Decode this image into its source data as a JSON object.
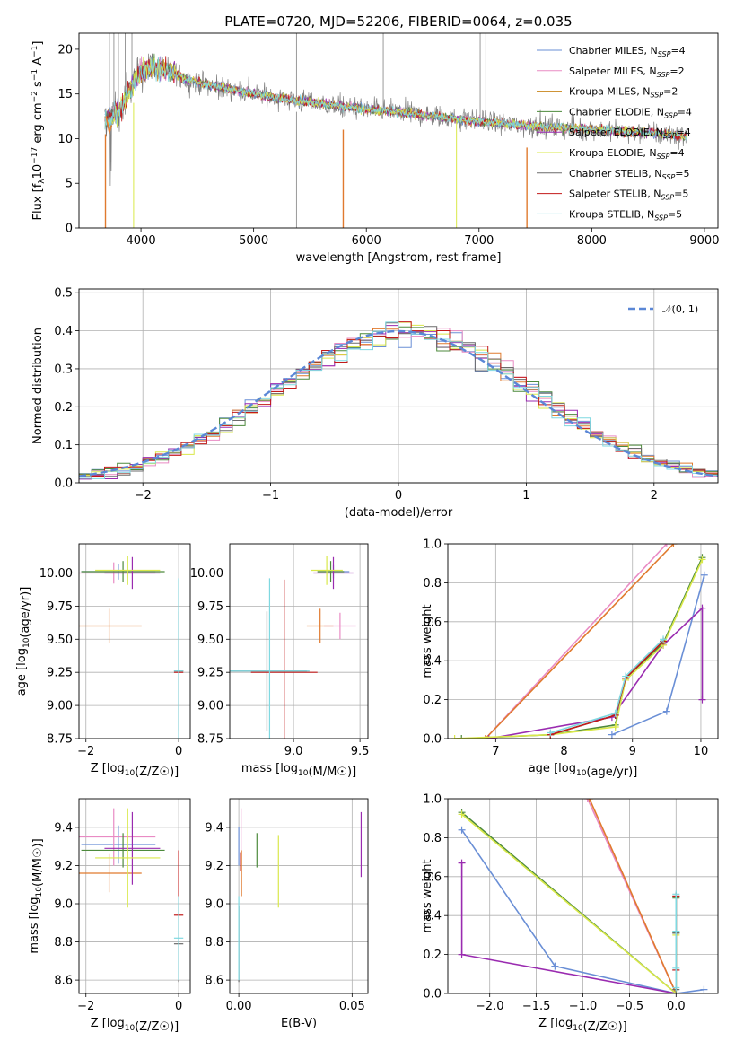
{
  "figure": {
    "title": "PLATE=0720, MJD=52206, FIBERID=0064, z=0.035"
  },
  "colors": {
    "Chabrier MILES": "#6a8fd6",
    "Salpeter MILES": "#e98bc4",
    "Kroupa MILES": "#c8841a",
    "Chabrier ELODIE": "#4d8a3c",
    "Salpeter ELODIE": "#9a2bb0",
    "Kroupa ELODIE": "#d9e84a",
    "Chabrier STELIB": "#6b6b6b",
    "Salpeter STELIB": "#c21a1a",
    "Kroupa STELIB": "#7fd8e0",
    "spectrum_orange": "#e07a2e",
    "normal_curve": "#5b87d6"
  },
  "chart_data": [
    {
      "id": "spectrum",
      "type": "line",
      "title": "PLATE=0720, MJD=52206, FIBERID=0064, z=0.035",
      "xlabel": "wavelength [Angstrom, rest frame]",
      "ylabel": "Flux [fλ10⁻¹⁷ erg cm⁻² s⁻¹ A⁻¹]",
      "xlim": [
        3450,
        9120
      ],
      "ylim": [
        0,
        21.8
      ],
      "xticks": [
        4000,
        5000,
        6000,
        7000,
        8000,
        9000
      ],
      "yticks": [
        0,
        5,
        10,
        15,
        20
      ],
      "grid": false,
      "legend_position": "top-right",
      "continuum": [
        [
          3680,
          12.0
        ],
        [
          3800,
          13.0
        ],
        [
          3950,
          16.5
        ],
        [
          4000,
          17.5
        ],
        [
          4100,
          18.0
        ],
        [
          4250,
          17.6
        ],
        [
          4400,
          16.6
        ],
        [
          4600,
          16.0
        ],
        [
          4800,
          15.5
        ],
        [
          5000,
          15.0
        ],
        [
          5300,
          14.4
        ],
        [
          5600,
          13.9
        ],
        [
          6000,
          13.3
        ],
        [
          6400,
          12.8
        ],
        [
          6800,
          12.2
        ],
        [
          7200,
          11.7
        ],
        [
          7600,
          11.3
        ],
        [
          8000,
          11.0
        ],
        [
          8400,
          10.7
        ],
        [
          8850,
          10.3
        ]
      ],
      "series": [
        {
          "name": "Chabrier MILES",
          "label": "Chabrier MILES, N",
          "sub": "SSP",
          "suffix": "=4"
        },
        {
          "name": "Salpeter MILES",
          "label": "Salpeter MILES, N",
          "sub": "SSP",
          "suffix": "=2"
        },
        {
          "name": "Kroupa MILES",
          "label": "Kroupa MILES, N",
          "sub": "SSP",
          "suffix": "=2"
        },
        {
          "name": "Chabrier ELODIE",
          "label": "Chabrier ELODIE, N",
          "sub": "SSP",
          "suffix": "=4"
        },
        {
          "name": "Salpeter ELODIE",
          "label": "Salpeter ELODIE, N",
          "sub": "SSP",
          "suffix": "=4"
        },
        {
          "name": "Kroupa ELODIE",
          "label": "Kroupa ELODIE, N",
          "sub": "SSP",
          "suffix": "=4"
        },
        {
          "name": "Chabrier STELIB",
          "label": "Chabrier STELIB, N",
          "sub": "SSP",
          "suffix": "=5"
        },
        {
          "name": "Salpeter STELIB",
          "label": "Salpeter STELIB, N",
          "sub": "SSP",
          "suffix": "=5"
        },
        {
          "name": "Kroupa STELIB",
          "label": "Kroupa STELIB, N",
          "sub": "SSP",
          "suffix": "=5"
        }
      ]
    },
    {
      "id": "residuals",
      "type": "histogram",
      "xlabel": "(data-model)/error",
      "ylabel": "Normed distribution",
      "xlim": [
        -2.5,
        2.5
      ],
      "ylim": [
        0,
        0.51
      ],
      "xticks": [
        -2,
        -1,
        0,
        1,
        2
      ],
      "yticks": [
        0.0,
        0.1,
        0.2,
        0.3,
        0.4,
        0.5
      ],
      "grid": true,
      "legend_position": "top-right",
      "legend_label": "𝒩(0, 1)",
      "bin_width": 0.1
    },
    {
      "id": "age_vs_Z",
      "type": "errorbar",
      "xlabel": "Z [log10(Z/Z☉)]",
      "ylabel": "age  [log10(age/yr)]",
      "xlim": [
        -2.15,
        0.25
      ],
      "ylim": [
        8.75,
        10.22
      ],
      "xticks": [
        -2,
        0
      ],
      "yticks": [
        8.75,
        9.0,
        9.25,
        9.5,
        9.75,
        10.0
      ],
      "grid": true,
      "points": [
        {
          "s": "Chabrier MILES",
          "x": -1.3,
          "y": 10.01,
          "ex": 0.8,
          "ey": 0.06
        },
        {
          "s": "Salpeter MILES",
          "x": -1.4,
          "y": 10.0,
          "ex": 0.9,
          "ey": 0.08
        },
        {
          "s": "Kroupa MILES",
          "x": -1.5,
          "y": 9.6,
          "ex": 0.7,
          "ey": 0.13
        },
        {
          "s": "Chabrier ELODIE",
          "x": -1.2,
          "y": 10.01,
          "ex": 0.9,
          "ey": 0.08
        },
        {
          "s": "Salpeter ELODIE",
          "x": -1.0,
          "y": 10.0,
          "ex": 0.6,
          "ey": 0.12
        },
        {
          "s": "Kroupa ELODIE",
          "x": -1.1,
          "y": 10.02,
          "ex": 0.7,
          "ey": 0.11
        },
        {
          "s": "Chabrier STELIB",
          "x": 0.0,
          "y": 9.26,
          "ex": 0.1,
          "ey": 0.45
        },
        {
          "s": "Salpeter STELIB",
          "x": 0.0,
          "y": 9.25,
          "ex": 0.1,
          "ey": 0.7
        },
        {
          "s": "Kroupa STELIB",
          "x": 0.0,
          "y": 9.26,
          "ex": 0.1,
          "ey": 0.7
        }
      ]
    },
    {
      "id": "age_vs_mass",
      "type": "errorbar",
      "xlabel": "mass [log10(M/M☉)]",
      "ylabel": "",
      "xlim": [
        8.52,
        9.56
      ],
      "ylim": [
        8.75,
        10.22
      ],
      "xticks": [
        9.0,
        9.5
      ],
      "yticks": [
        8.75,
        9.0,
        9.25,
        9.5,
        9.75,
        10.0
      ],
      "grid": true,
      "points": [
        {
          "s": "Chabrier MILES",
          "x": 9.3,
          "y": 10.01,
          "ex": 0.12,
          "ey": 0.05
        },
        {
          "s": "Salpeter MILES",
          "x": 9.35,
          "y": 9.6,
          "ex": 0.12,
          "ey": 0.1
        },
        {
          "s": "Kroupa MILES",
          "x": 9.2,
          "y": 9.6,
          "ex": 0.1,
          "ey": 0.13
        },
        {
          "s": "Chabrier ELODIE",
          "x": 9.28,
          "y": 10.01,
          "ex": 0.1,
          "ey": 0.08
        },
        {
          "s": "Salpeter ELODIE",
          "x": 9.3,
          "y": 10.0,
          "ex": 0.15,
          "ey": 0.12
        },
        {
          "s": "Kroupa ELODIE",
          "x": 9.25,
          "y": 10.02,
          "ex": 0.12,
          "ey": 0.11
        },
        {
          "s": "Chabrier STELIB",
          "x": 8.8,
          "y": 9.26,
          "ex": 0.3,
          "ey": 0.45
        },
        {
          "s": "Salpeter STELIB",
          "x": 8.93,
          "y": 9.25,
          "ex": 0.25,
          "ey": 0.7
        },
        {
          "s": "Kroupa STELIB",
          "x": 8.82,
          "y": 9.26,
          "ex": 0.3,
          "ey": 0.7
        }
      ]
    },
    {
      "id": "weight_vs_age",
      "type": "line",
      "xlabel": "age  [log10(age/yr)]",
      "ylabel": "mass weight",
      "xlim": [
        6.3,
        10.25
      ],
      "ylim": [
        0,
        1.0
      ],
      "xticks": [
        7,
        8,
        9,
        10
      ],
      "yticks": [
        0.0,
        0.2,
        0.4,
        0.6,
        0.8,
        1.0
      ],
      "grid": true,
      "series": [
        {
          "s": "Chabrier MILES",
          "x": [
            8.7,
            9.5,
            10.05
          ],
          "y": [
            0.02,
            0.14,
            0.84
          ]
        },
        {
          "s": "Salpeter MILES",
          "x": [
            6.85,
            9.5
          ],
          "y": [
            0.0,
            1.0
          ]
        },
        {
          "s": "Kroupa MILES",
          "x": [
            6.85,
            9.6
          ],
          "y": [
            0.0,
            1.0
          ]
        },
        {
          "s": "Chabrier ELODIE",
          "x": [
            6.5,
            7.8,
            8.75,
            8.9,
            9.45,
            10.02
          ],
          "y": [
            0.0,
            0.02,
            0.07,
            0.31,
            0.49,
            0.93
          ]
        },
        {
          "s": "Salpeter ELODIE",
          "x": [
            6.9,
            8.7,
            9.45,
            10.02,
            10.02
          ],
          "y": [
            0.0,
            0.11,
            0.48,
            0.67,
            0.2
          ]
        },
        {
          "s": "Kroupa ELODIE",
          "x": [
            6.4,
            7.8,
            8.75,
            8.9,
            9.45,
            10.02
          ],
          "y": [
            0.0,
            0.02,
            0.06,
            0.3,
            0.48,
            0.92
          ]
        },
        {
          "s": "Chabrier STELIB",
          "x": [
            7.8,
            8.75,
            8.9,
            9.45
          ],
          "y": [
            0.02,
            0.12,
            0.31,
            0.5
          ]
        },
        {
          "s": "Salpeter STELIB",
          "x": [
            7.8,
            8.75,
            8.9,
            9.45
          ],
          "y": [
            0.02,
            0.12,
            0.31,
            0.5
          ]
        },
        {
          "s": "Kroupa STELIB",
          "x": [
            7.8,
            8.75,
            8.9,
            9.45
          ],
          "y": [
            0.03,
            0.13,
            0.32,
            0.51
          ]
        }
      ]
    },
    {
      "id": "mass_vs_Z",
      "type": "errorbar",
      "xlabel": "Z [log10(Z/Z☉)]",
      "ylabel": "mass [log10(M/M☉)]",
      "xlim": [
        -2.15,
        0.25
      ],
      "ylim": [
        8.53,
        9.55
      ],
      "xticks": [
        -2,
        0
      ],
      "yticks": [
        8.6,
        8.8,
        9.0,
        9.2,
        9.4
      ],
      "grid": true,
      "points": [
        {
          "s": "Chabrier MILES",
          "x": -1.3,
          "y": 9.31,
          "ex": 0.8,
          "ey": 0.1
        },
        {
          "s": "Salpeter MILES",
          "x": -1.4,
          "y": 9.35,
          "ex": 0.9,
          "ey": 0.15
        },
        {
          "s": "Kroupa MILES",
          "x": -1.5,
          "y": 9.16,
          "ex": 0.7,
          "ey": 0.1
        },
        {
          "s": "Chabrier ELODIE",
          "x": -1.2,
          "y": 9.28,
          "ex": 0.9,
          "ey": 0.09
        },
        {
          "s": "Salpeter ELODIE",
          "x": -1.0,
          "y": 9.29,
          "ex": 0.6,
          "ey": 0.19
        },
        {
          "s": "Kroupa ELODIE",
          "x": -1.1,
          "y": 9.24,
          "ex": 0.7,
          "ey": 0.26
        },
        {
          "s": "Chabrier STELIB",
          "x": 0.0,
          "y": 8.79,
          "ex": 0.1,
          "ey": 0.2
        },
        {
          "s": "Salpeter STELIB",
          "x": 0.0,
          "y": 8.94,
          "ex": 0.1,
          "ey": 0.34
        },
        {
          "s": "Kroupa STELIB",
          "x": 0.0,
          "y": 8.82,
          "ex": 0.1,
          "ey": 0.22
        }
      ]
    },
    {
      "id": "mass_vs_ebv",
      "type": "errorbar",
      "xlabel": "E(B-V)",
      "ylabel": "",
      "xlim": [
        -0.004,
        0.057
      ],
      "ylim": [
        8.53,
        9.55
      ],
      "xticks": [
        0.0,
        0.05
      ],
      "yticks": [
        8.6,
        8.8,
        9.0,
        9.2,
        9.4
      ],
      "grid": true,
      "points": [
        {
          "s": "Chabrier MILES",
          "x": 0.0,
          "y": 9.3,
          "ex": 0,
          "ey": 0.1
        },
        {
          "s": "Salpeter MILES",
          "x": 0.001,
          "y": 9.35,
          "ex": 0,
          "ey": 0.15
        },
        {
          "s": "Kroupa MILES",
          "x": 0.0012,
          "y": 9.16,
          "ex": 0,
          "ey": 0.12
        },
        {
          "s": "Chabrier ELODIE",
          "x": 0.008,
          "y": 9.28,
          "ex": 0,
          "ey": 0.09
        },
        {
          "s": "Salpeter ELODIE",
          "x": 0.054,
          "y": 9.31,
          "ex": 0,
          "ey": 0.17
        },
        {
          "s": "Kroupa ELODIE",
          "x": 0.0175,
          "y": 9.17,
          "ex": 0,
          "ey": 0.19
        },
        {
          "s": "Chabrier STELIB",
          "x": 0.0,
          "y": 8.79,
          "ex": 0,
          "ey": 0.2
        },
        {
          "s": "Salpeter STELIB",
          "x": 0.0008,
          "y": 9.22,
          "ex": 0,
          "ey": 0.05
        },
        {
          "s": "Kroupa STELIB",
          "x": 0.0,
          "y": 8.82,
          "ex": 0,
          "ey": 0.22
        }
      ]
    },
    {
      "id": "weight_vs_Z",
      "type": "line",
      "xlabel": "Z [log10(Z/Z☉)]",
      "ylabel": "mass weight",
      "xlim": [
        -2.45,
        0.45
      ],
      "ylim": [
        0,
        1.0
      ],
      "xticks": [
        -2.0,
        -1.5,
        -1.0,
        -0.5,
        0.0
      ],
      "yticks": [
        0.0,
        0.2,
        0.4,
        0.6,
        0.8,
        1.0
      ],
      "grid": true,
      "series": [
        {
          "s": "Chabrier MILES",
          "x": [
            -2.3,
            -1.3,
            0.0,
            0.3
          ],
          "y": [
            0.84,
            0.14,
            0.0,
            0.02
          ]
        },
        {
          "s": "Salpeter MILES",
          "x": [
            -0.95,
            0.0
          ],
          "y": [
            1.0,
            0.0
          ]
        },
        {
          "s": "Kroupa MILES",
          "x": [
            -0.93,
            0.0
          ],
          "y": [
            1.0,
            0.0
          ]
        },
        {
          "s": "Chabrier ELODIE",
          "x": [
            -2.3,
            0.0,
            0.0,
            0.0
          ],
          "y": [
            0.93,
            0.0,
            0.31,
            0.49
          ]
        },
        {
          "s": "Salpeter ELODIE",
          "x": [
            -2.3,
            -2.3,
            0.0
          ],
          "y": [
            0.67,
            0.2,
            0.0
          ]
        },
        {
          "s": "Kroupa ELODIE",
          "x": [
            -2.3,
            0.0,
            0.0
          ],
          "y": [
            0.92,
            0.0,
            0.3
          ]
        },
        {
          "s": "Chabrier STELIB",
          "x": [
            0.0,
            0.0,
            0.0,
            0.0
          ],
          "y": [
            0.02,
            0.12,
            0.31,
            0.5
          ]
        },
        {
          "s": "Salpeter STELIB",
          "x": [
            0.0,
            0.0
          ],
          "y": [
            0.12,
            0.5
          ]
        },
        {
          "s": "Kroupa STELIB",
          "x": [
            0.0,
            0.0,
            0.0,
            0.0
          ],
          "y": [
            0.03,
            0.13,
            0.32,
            0.51
          ]
        }
      ]
    }
  ]
}
